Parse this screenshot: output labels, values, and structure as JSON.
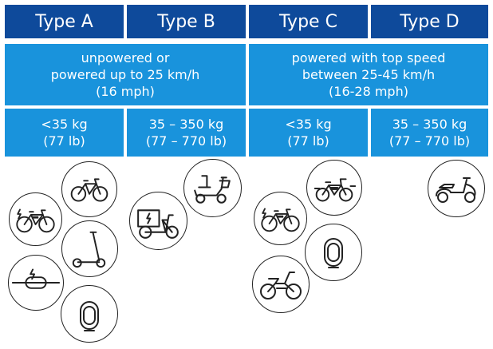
{
  "headers": [
    "Type A",
    "Type B",
    "Type C",
    "Type D"
  ],
  "speed": {
    "left": [
      "unpowered or",
      "powered up to 25 km/h",
      "(16 mph)"
    ],
    "right": [
      "powered with top speed",
      "between 25-45 km/h",
      "(16-28 mph)"
    ]
  },
  "weights": [
    [
      "<35 kg",
      "(77 lb)"
    ],
    [
      "35 – 350 kg",
      "(77 – 770 lb)"
    ],
    [
      "<35 kg",
      "(77 lb)"
    ],
    [
      "35 – 350 kg",
      "(77 – 770 lb)"
    ]
  ],
  "colors": {
    "header": "#0e4a9b",
    "band": "#1993dc"
  },
  "icons": {
    "type_a": [
      "bicycle-icon",
      "e-bike-icon",
      "e-scooter-icon",
      "onewheel-icon",
      "unicycle-icon"
    ],
    "type_b": [
      "mobility-scooter-icon",
      "cargo-e-bike-icon"
    ],
    "type_c": [
      "speed-e-bike-icon",
      "e-bike-icon",
      "unicycle-icon",
      "moped-icon"
    ],
    "type_d": [
      "motor-scooter-icon"
    ]
  }
}
